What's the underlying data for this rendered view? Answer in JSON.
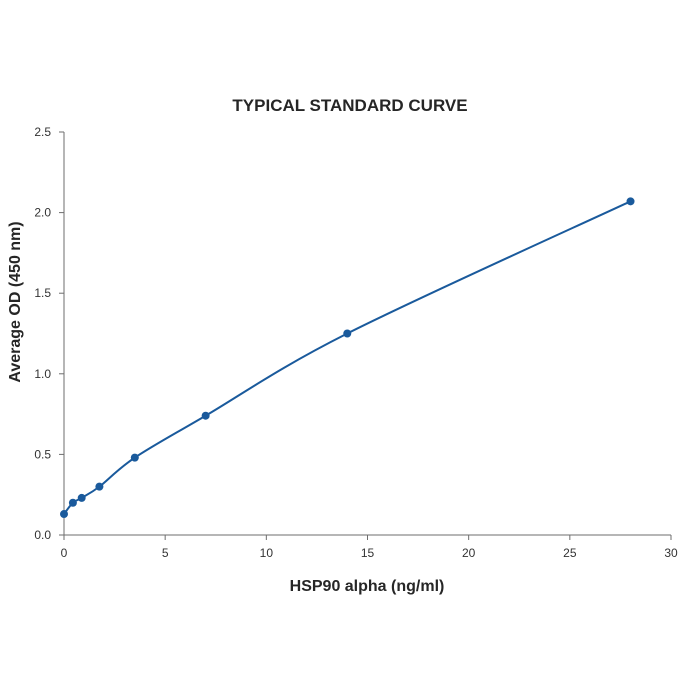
{
  "chart_data": {
    "type": "line",
    "title": "TYPICAL STANDARD CURVE",
    "xlabel": "HSP90 alpha (ng/ml)",
    "ylabel": "Average OD (450 nm)",
    "xlim": [
      0,
      30
    ],
    "ylim": [
      0,
      2.5
    ],
    "xticks": [
      "0",
      "5",
      "10",
      "15",
      "20",
      "25",
      "30"
    ],
    "yticks": [
      "0.0",
      "0.5",
      "1.0",
      "1.5",
      "2.0",
      "2.5"
    ],
    "grid": false,
    "legend": "none",
    "smoothed": true,
    "series": [
      {
        "x": [
          0,
          0.44,
          0.875,
          1.75,
          3.5,
          7,
          14,
          28
        ],
        "y": [
          0.13,
          0.2,
          0.23,
          0.3,
          0.48,
          0.74,
          1.25,
          2.07
        ]
      }
    ],
    "colors": {
      "line": "#1a5a9c",
      "marker": "#1a5a9c",
      "axis": "#6d6d6d"
    }
  }
}
